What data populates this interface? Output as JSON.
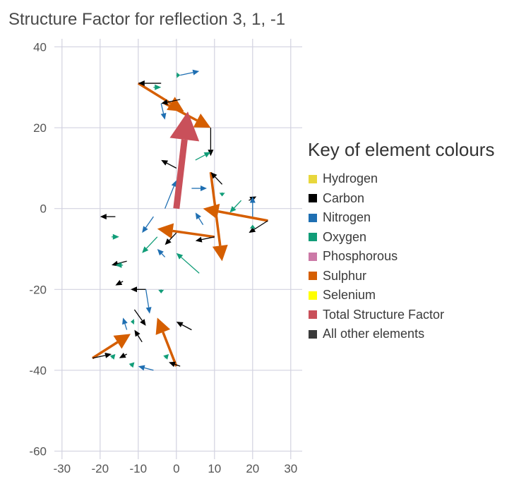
{
  "chart_data": {
    "type": "vector-path",
    "title": "Structure Factor for reflection 3, 1, -1",
    "xlabel": "",
    "ylabel": "",
    "xlim": [
      -32,
      33
    ],
    "ylim": [
      -62,
      42
    ],
    "x_ticks": [
      -30,
      -20,
      -10,
      0,
      10,
      20,
      30
    ],
    "y_ticks": [
      40,
      20,
      0,
      -20,
      -40,
      -60
    ],
    "x_tick_labels": [
      "-30",
      "-20",
      "-10",
      "0",
      "10",
      "20",
      "30"
    ],
    "y_tick_labels": [
      "40",
      "20",
      "0",
      "-20",
      "-40",
      "-60"
    ],
    "grid": true,
    "legend": {
      "title": "Key of element colours",
      "placement": "right",
      "items": [
        {
          "label": "Hydrogen",
          "color": "#e8d73c"
        },
        {
          "label": "Carbon",
          "color": "#000000"
        },
        {
          "label": "Nitrogen",
          "color": "#1f6fb2"
        },
        {
          "label": "Oxygen",
          "color": "#119d78"
        },
        {
          "label": "Phosphorous",
          "color": "#cc79a7"
        },
        {
          "label": "Sulphur",
          "color": "#d55e00"
        },
        {
          "label": "Selenium",
          "color": "#ffff00"
        },
        {
          "label": "Total Structure Factor",
          "color": "#c9505a"
        },
        {
          "label": "All other elements",
          "color": "#3a3a3a"
        }
      ]
    },
    "total_vector": {
      "from": [
        0,
        0
      ],
      "to": [
        3,
        24
      ],
      "color": "#c9505a"
    },
    "series": [
      {
        "name": "Sulphur",
        "color": "#d55e00",
        "vectors": [
          [
            [
              -10,
              31
            ],
            [
              2,
              24
            ]
          ],
          [
            [
              -3,
              26
            ],
            [
              9,
              20
            ]
          ],
          [
            [
              9,
              9
            ],
            [
              12,
              -13
            ]
          ],
          [
            [
              24,
              -3
            ],
            [
              7,
              0
            ]
          ],
          [
            [
              10,
              -7
            ],
            [
              -5,
              -5
            ]
          ],
          [
            [
              0,
              -39
            ],
            [
              -5,
              -27
            ]
          ],
          [
            [
              -22,
              -37
            ],
            [
              -12,
              -31
            ]
          ]
        ]
      },
      {
        "name": "Carbon",
        "color": "#000000",
        "vectors": [
          [
            [
              -4,
              31
            ],
            [
              -10,
              31
            ]
          ],
          [
            [
              1,
              27
            ],
            [
              -4,
              26
            ]
          ],
          [
            [
              9,
              20
            ],
            [
              9,
              13
            ]
          ],
          [
            [
              0,
              10
            ],
            [
              -4,
              12
            ]
          ],
          [
            [
              12,
              6
            ],
            [
              9,
              9
            ]
          ],
          [
            [
              19,
              2
            ],
            [
              21,
              3
            ]
          ],
          [
            [
              24,
              -3
            ],
            [
              19,
              -6
            ]
          ],
          [
            [
              10,
              -7
            ],
            [
              5,
              -8
            ]
          ],
          [
            [
              0,
              -6
            ],
            [
              -3,
              -9
            ]
          ],
          [
            [
              -16,
              -2
            ],
            [
              -20,
              -2
            ]
          ],
          [
            [
              -13,
              -13
            ],
            [
              -17,
              -14
            ]
          ],
          [
            [
              -14,
              -18
            ],
            [
              -16,
              -19
            ]
          ],
          [
            [
              -8,
              -20
            ],
            [
              -12,
              -20
            ]
          ],
          [
            [
              4,
              -30
            ],
            [
              0,
              -28
            ]
          ],
          [
            [
              -9,
              -33
            ],
            [
              -11,
              -30
            ]
          ],
          [
            [
              -13,
              -36
            ],
            [
              -15,
              -37
            ]
          ],
          [
            [
              -22,
              -37
            ],
            [
              -17,
              -36
            ]
          ],
          [
            [
              1,
              -39
            ],
            [
              -2,
              -38
            ]
          ],
          [
            [
              -11,
              -25
            ],
            [
              -8,
              -29
            ]
          ]
        ]
      },
      {
        "name": "Nitrogen",
        "color": "#1f6fb2",
        "vectors": [
          [
            [
              1,
              33
            ],
            [
              6,
              34
            ]
          ],
          [
            [
              -4,
              26
            ],
            [
              -3,
              22
            ]
          ],
          [
            [
              -3,
              0
            ],
            [
              0,
              7
            ]
          ],
          [
            [
              4,
              5
            ],
            [
              8,
              5
            ]
          ],
          [
            [
              -6,
              -2
            ],
            [
              -9,
              -6
            ]
          ],
          [
            [
              20,
              -2
            ],
            [
              20,
              3
            ]
          ],
          [
            [
              7,
              -4
            ],
            [
              5,
              -1
            ]
          ],
          [
            [
              -8,
              -20
            ],
            [
              -7,
              -26
            ]
          ],
          [
            [
              -13,
              -30
            ],
            [
              -14,
              -27
            ]
          ],
          [
            [
              -6,
              -40
            ],
            [
              -10,
              -39
            ]
          ],
          [
            [
              -3,
              -12
            ],
            [
              -5,
              -10
            ]
          ]
        ]
      },
      {
        "name": "Oxygen",
        "color": "#119d78",
        "vectors": [
          [
            [
              -6,
              30
            ],
            [
              -4,
              30
            ]
          ],
          [
            [
              0,
              33
            ],
            [
              1,
              33
            ]
          ],
          [
            [
              5,
              12
            ],
            [
              9,
              14
            ]
          ],
          [
            [
              12,
              4
            ],
            [
              12,
              3
            ]
          ],
          [
            [
              17,
              2
            ],
            [
              14,
              -1
            ]
          ],
          [
            [
              20,
              -5
            ],
            [
              20,
              -4
            ]
          ],
          [
            [
              -5,
              -7
            ],
            [
              -9,
              -11
            ]
          ],
          [
            [
              -17,
              -7
            ],
            [
              -15,
              -7
            ]
          ],
          [
            [
              -14,
              -14
            ],
            [
              -16,
              -14
            ]
          ],
          [
            [
              6,
              -16
            ],
            [
              0,
              -11
            ]
          ],
          [
            [
              -4,
              -20
            ],
            [
              -4,
              -21
            ]
          ],
          [
            [
              -3,
              -37
            ],
            [
              -2,
              -36
            ]
          ],
          [
            [
              -12,
              -39
            ],
            [
              -11,
              -38
            ]
          ],
          [
            [
              -17,
              -37
            ],
            [
              -16,
              -36
            ]
          ],
          [
            [
              -11,
              -28
            ],
            [
              -12,
              -28
            ]
          ]
        ]
      }
    ]
  }
}
